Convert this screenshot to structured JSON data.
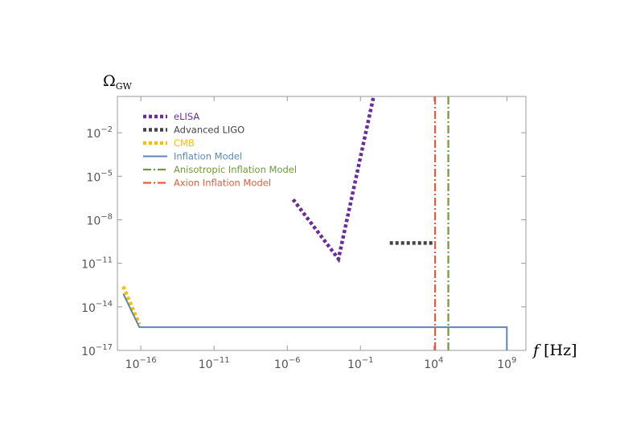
{
  "chart_data": {
    "type": "line",
    "x_scale": "log10",
    "y_scale": "log10",
    "xlim_exp": [
      -17.6,
      10.3
    ],
    "ylim_exp": [
      -17,
      0.5
    ],
    "x_ticks": [
      {
        "base": "10",
        "exp": "−16",
        "value_exp": -16
      },
      {
        "base": "10",
        "exp": "−11",
        "value_exp": -11
      },
      {
        "base": "10",
        "exp": "−6",
        "value_exp": -6
      },
      {
        "base": "10",
        "exp": "−1",
        "value_exp": -1
      },
      {
        "base": "10",
        "exp": "4",
        "value_exp": 4
      },
      {
        "base": "10",
        "exp": "9",
        "value_exp": 9
      }
    ],
    "y_ticks": [
      {
        "base": "10",
        "exp": "−2",
        "value_exp": -2
      },
      {
        "base": "10",
        "exp": "−5",
        "value_exp": -5
      },
      {
        "base": "10",
        "exp": "−8",
        "value_exp": -8
      },
      {
        "base": "10",
        "exp": "−11",
        "value_exp": -11
      },
      {
        "base": "10",
        "exp": "−14",
        "value_exp": -14
      },
      {
        "base": "10",
        "exp": "−17",
        "value_exp": -17
      }
    ],
    "xlabel": {
      "italic": "f",
      "rest": " [Hz]"
    },
    "ylabel": {
      "main": "Ω",
      "sub": "GW"
    },
    "legend_position": "top-left",
    "series": [
      {
        "name": "eLISA",
        "style": "dotted",
        "color": "#6a2e9a",
        "x_exp": [
          -5.6,
          -2.5,
          -0.1
        ],
        "y_exp": [
          -6.6,
          -10.7,
          0.5
        ]
      },
      {
        "name": "Advanced LIGO",
        "style": "dotted",
        "color": "#444444",
        "x_exp": [
          1.0,
          4.0
        ],
        "y_exp": [
          -9.6,
          -9.6
        ]
      },
      {
        "name": "CMB",
        "style": "dotted",
        "color": "#f5c000",
        "x_exp": [
          -17.2,
          -16.1
        ],
        "y_exp": [
          -12.6,
          -15.2
        ]
      },
      {
        "name": "Inflation Model",
        "style": "solid",
        "color": "#5a86bf",
        "x_exp": [
          -17.2,
          -16.1,
          9,
          9
        ],
        "y_exp": [
          -13.1,
          -15.4,
          -15.4,
          -17
        ]
      },
      {
        "name": "Anisotropic Inflation Model",
        "style": "dashdot",
        "color": "#6e9a3c",
        "x_exp": [
          5,
          5
        ],
        "y_exp": [
          -17,
          0.5
        ]
      },
      {
        "name": "Axion Inflation Model",
        "style": "dashdot",
        "color": "#e45c3a",
        "x_exp": [
          4.1,
          4.1
        ],
        "y_exp": [
          -17,
          0.5
        ]
      }
    ]
  }
}
